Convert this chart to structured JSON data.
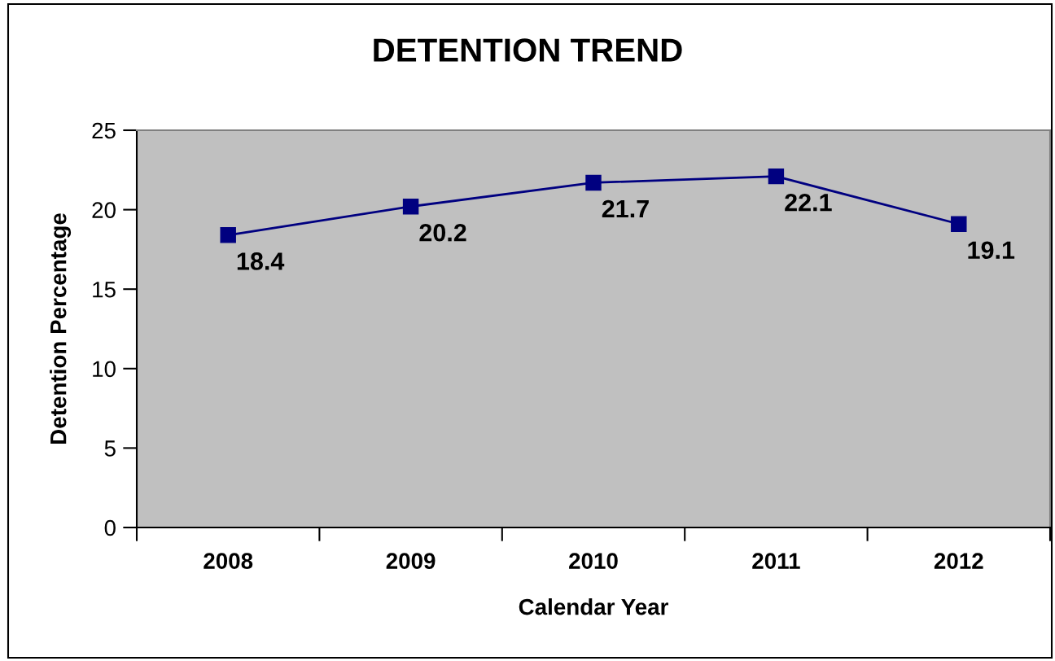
{
  "chart_data": {
    "type": "line",
    "title": "DETENTION TREND",
    "xlabel": "Calendar Year",
    "ylabel": "Detention Percentage",
    "categories": [
      "2008",
      "2009",
      "2010",
      "2011",
      "2012"
    ],
    "series": [
      {
        "color": "#000080",
        "values": [
          18.4,
          20.2,
          21.7,
          22.1,
          19.1
        ]
      }
    ],
    "ylim": [
      0,
      25
    ],
    "yticks": [
      0,
      5,
      10,
      15,
      20,
      25
    ],
    "data_labels": true,
    "marker": "square",
    "line_style": "solid",
    "grid": false
  }
}
